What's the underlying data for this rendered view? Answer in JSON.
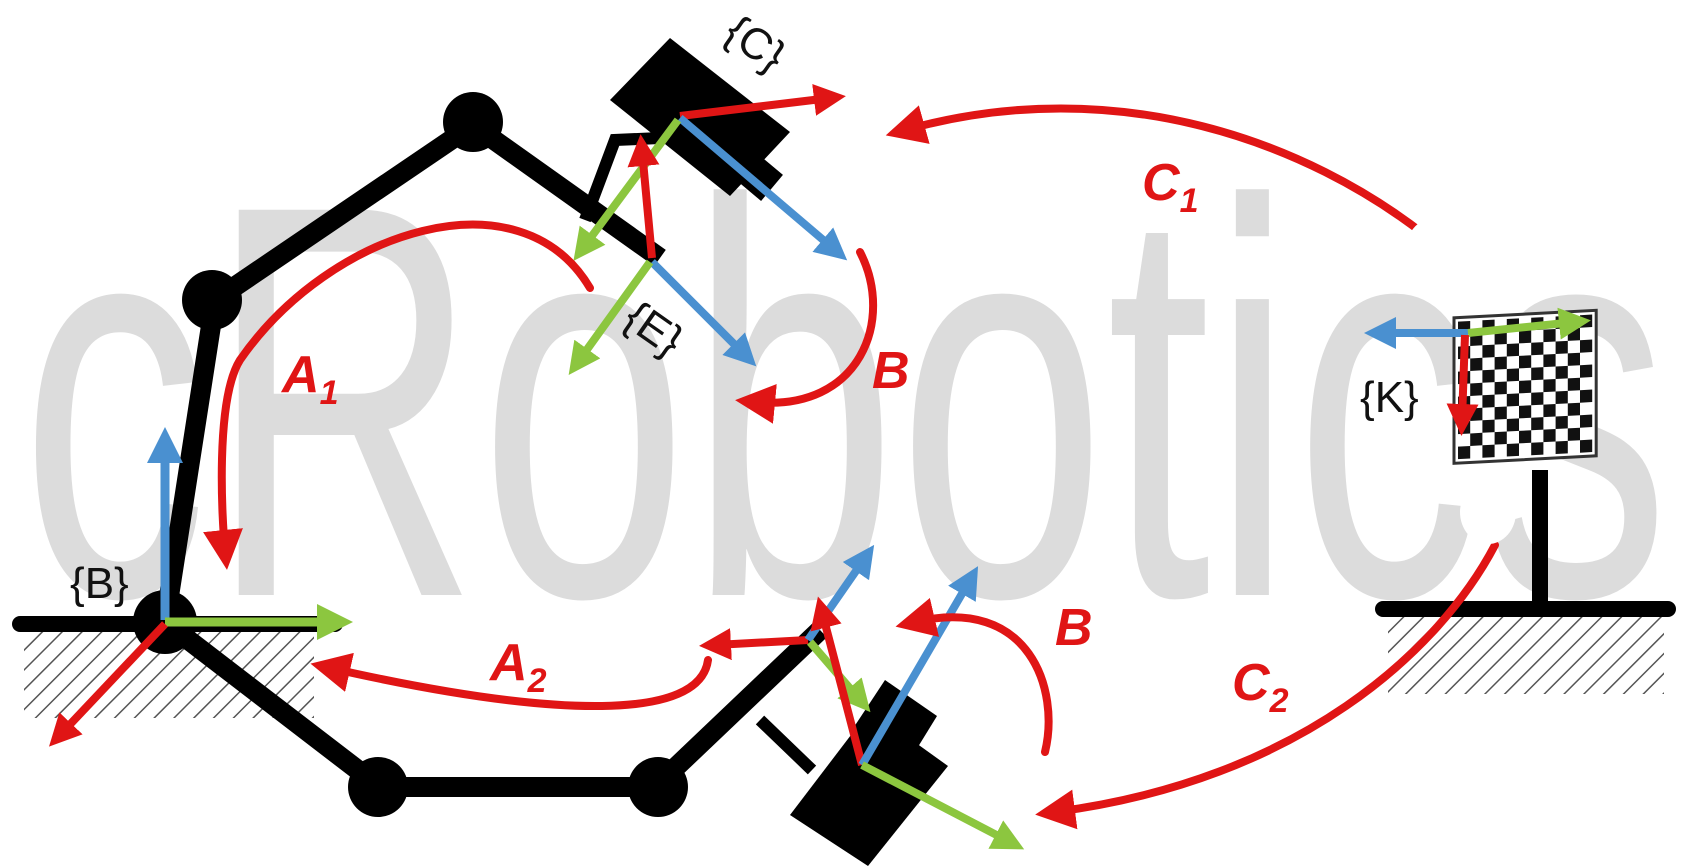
{
  "watermark": "cRobotics",
  "frames": {
    "base": "{B}",
    "camera": "{C}",
    "end_effector": "{E}",
    "calibration_board": "{K}"
  },
  "transforms": {
    "a1": {
      "main": "A",
      "sub": "1"
    },
    "a2": {
      "main": "A",
      "sub": "2"
    },
    "b_upper": "B",
    "b_lower": "B",
    "c1": {
      "main": "C",
      "sub": "1"
    },
    "c2": {
      "main": "C",
      "sub": "2"
    }
  },
  "colors": {
    "transform_arrow": "#e01515",
    "axis_x": "#e01515",
    "axis_y": "#8cc63f",
    "axis_z": "#4a90d0",
    "robot": "#000000",
    "ground_hatch": "#555555",
    "watermark": "#dcdcdc"
  }
}
